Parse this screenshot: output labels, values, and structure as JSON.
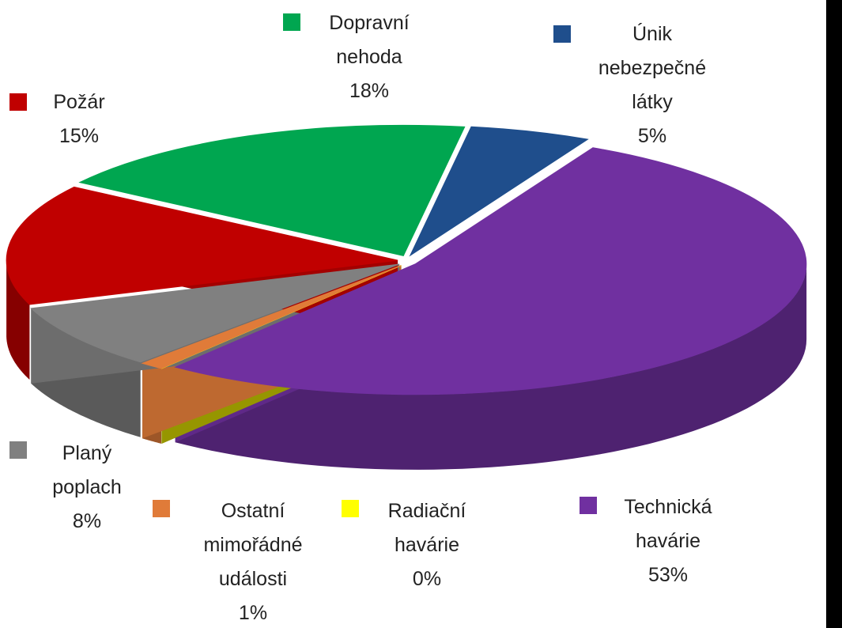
{
  "chart_data": {
    "type": "pie",
    "categories": [
      "Únik nebezpečné látky",
      "Technická havárie",
      "Radiační havárie",
      "Ostatní mimořádné události",
      "Planý poplach",
      "Požár",
      "Dopravní nehoda"
    ],
    "values": [
      5,
      53,
      0,
      1,
      8,
      15,
      18
    ],
    "value_labels": [
      "5%",
      "53%",
      "0%",
      "1%",
      "8%",
      "15%",
      "18%"
    ],
    "colors": [
      "#1f4e8c",
      "#7030a0",
      "#ffff00",
      "#e07b39",
      "#808080",
      "#c00000",
      "#00a650"
    ]
  }
}
